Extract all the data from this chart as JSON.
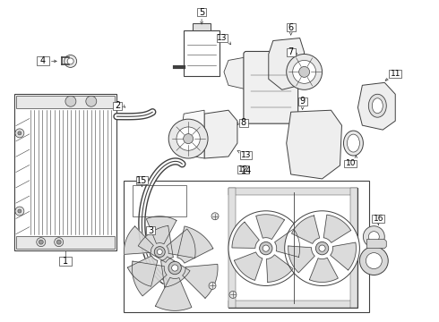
{
  "background_color": "#ffffff",
  "line_color": "#404040",
  "label_color": "#000000",
  "fig_width": 4.9,
  "fig_height": 3.6,
  "dpi": 100
}
